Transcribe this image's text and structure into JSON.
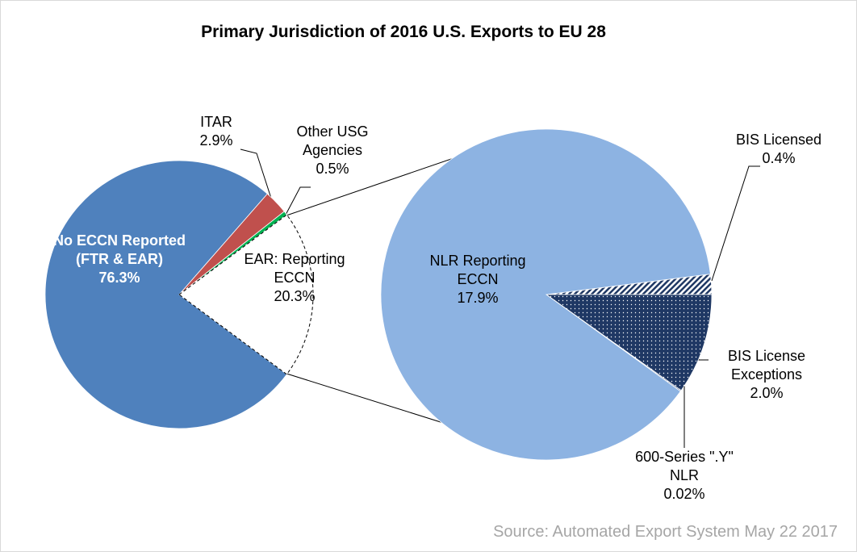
{
  "chart_data": {
    "type": "pie-of-pie",
    "title": "Primary Jurisdiction of 2016 U.S. Exports to EU 28",
    "source": "Source: Automated Export System May 22 2017",
    "pies": [
      {
        "categories": [
          "No ECCN Reported (FTR & EAR)",
          "ITAR",
          "Other USG Agencies",
          "EAR: Reporting ECCN"
        ],
        "values": [
          76.3,
          2.9,
          0.5,
          20.3
        ],
        "value_labels": [
          "76.3%",
          "2.9%",
          "0.5%",
          "20.3%"
        ],
        "colors": [
          "#4f81bd",
          "#c0504d",
          "#00b050",
          "#ffffff"
        ]
      },
      {
        "categories": [
          "BIS Licensed",
          "BIS License Exceptions",
          "600-Series \".Y\" NLR",
          "NLR Reporting ECCN"
        ],
        "values": [
          0.4,
          2.0,
          0.02,
          17.9
        ],
        "value_labels": [
          "0.4%",
          "2.0%",
          "0.02%",
          "17.9%"
        ],
        "colors": [
          "#1f3864",
          "#1f3864",
          "#1f3864",
          "#8db3e2"
        ],
        "patterns": [
          "stripes",
          "dots",
          "dots",
          null
        ]
      }
    ]
  }
}
